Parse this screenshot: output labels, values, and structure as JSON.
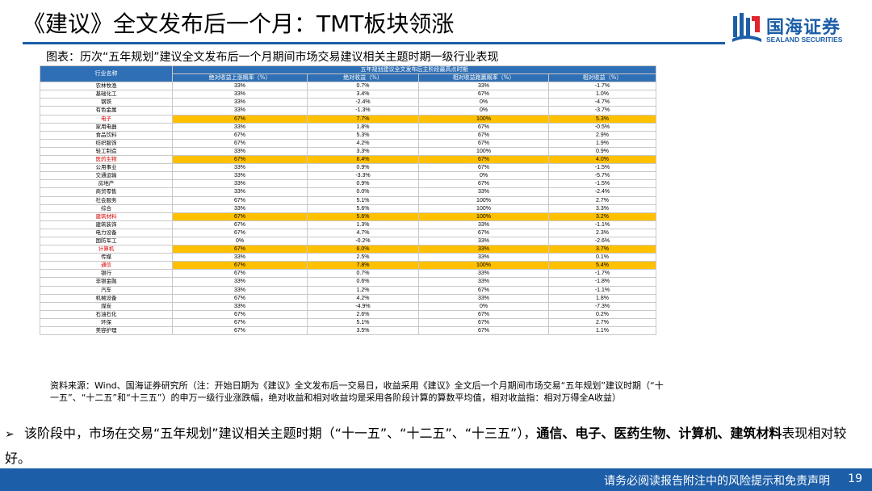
{
  "header": {
    "title": "《建议》全文发布后一个月：TMT板块领涨",
    "logo_cn": "国海证券",
    "logo_en": "SEALAND SECURITIES"
  },
  "caption": "图表：历次“五年规划”建议全文发布后一个月期间市场交易建议相关主题时期一级行业表现",
  "table": {
    "group_header": "五年规划建议全文发布后主阶段最高点时期",
    "industry_header": "行业名称",
    "columns": [
      "绝对收益上涨概率（%）",
      "绝对收益（%）",
      "相对收益跑赢概率（%）",
      "相对收益（%）"
    ],
    "rows": [
      {
        "name": "农林牧渔",
        "v": [
          "33%",
          "0.7%",
          "33%",
          "-1.7%"
        ],
        "hl": false
      },
      {
        "name": "基础化工",
        "v": [
          "33%",
          "3.4%",
          "67%",
          "1.0%"
        ],
        "hl": false
      },
      {
        "name": "钢铁",
        "v": [
          "33%",
          "-2.4%",
          "0%",
          "-4.7%"
        ],
        "hl": false
      },
      {
        "name": "有色金属",
        "v": [
          "33%",
          "-1.3%",
          "0%",
          "-3.7%"
        ],
        "hl": false
      },
      {
        "name": "电子",
        "v": [
          "67%",
          "7.7%",
          "100%",
          "5.3%"
        ],
        "hl": true
      },
      {
        "name": "家用电器",
        "v": [
          "33%",
          "1.8%",
          "67%",
          "-0.5%"
        ],
        "hl": false
      },
      {
        "name": "食品饮料",
        "v": [
          "67%",
          "5.3%",
          "67%",
          "2.9%"
        ],
        "hl": false
      },
      {
        "name": "纺织服饰",
        "v": [
          "67%",
          "4.2%",
          "67%",
          "1.9%"
        ],
        "hl": false
      },
      {
        "name": "轻工制造",
        "v": [
          "33%",
          "3.3%",
          "100%",
          "0.9%"
        ],
        "hl": false
      },
      {
        "name": "医药生物",
        "v": [
          "67%",
          "6.4%",
          "67%",
          "4.0%"
        ],
        "hl": true
      },
      {
        "name": "公用事业",
        "v": [
          "33%",
          "0.9%",
          "67%",
          "-1.5%"
        ],
        "hl": false
      },
      {
        "name": "交通运输",
        "v": [
          "33%",
          "-3.3%",
          "0%",
          "-5.7%"
        ],
        "hl": false
      },
      {
        "name": "房地产",
        "v": [
          "33%",
          "0.9%",
          "67%",
          "-1.5%"
        ],
        "hl": false
      },
      {
        "name": "商贸零售",
        "v": [
          "33%",
          "0.0%",
          "33%",
          "-2.4%"
        ],
        "hl": false
      },
      {
        "name": "社会服务",
        "v": [
          "67%",
          "5.1%",
          "100%",
          "2.7%"
        ],
        "hl": false
      },
      {
        "name": "综合",
        "v": [
          "33%",
          "5.6%",
          "100%",
          "3.3%"
        ],
        "hl": false
      },
      {
        "name": "建筑材料",
        "v": [
          "67%",
          "5.6%",
          "100%",
          "3.2%"
        ],
        "hl": true
      },
      {
        "name": "建筑装饰",
        "v": [
          "67%",
          "1.3%",
          "33%",
          "-1.1%"
        ],
        "hl": false
      },
      {
        "name": "电力设备",
        "v": [
          "67%",
          "4.7%",
          "67%",
          "2.3%"
        ],
        "hl": false
      },
      {
        "name": "国防军工",
        "v": [
          "0%",
          "-0.2%",
          "33%",
          "-2.6%"
        ],
        "hl": false
      },
      {
        "name": "计算机",
        "v": [
          "67%",
          "6.0%",
          "33%",
          "3.7%"
        ],
        "hl": true
      },
      {
        "name": "传媒",
        "v": [
          "33%",
          "2.5%",
          "33%",
          "0.1%"
        ],
        "hl": false
      },
      {
        "name": "通信",
        "v": [
          "67%",
          "7.8%",
          "100%",
          "5.4%"
        ],
        "hl": true
      },
      {
        "name": "银行",
        "v": [
          "67%",
          "0.7%",
          "33%",
          "-1.7%"
        ],
        "hl": false
      },
      {
        "name": "非银金融",
        "v": [
          "33%",
          "0.6%",
          "33%",
          "-1.8%"
        ],
        "hl": false
      },
      {
        "name": "汽车",
        "v": [
          "33%",
          "1.2%",
          "67%",
          "-1.1%"
        ],
        "hl": false
      },
      {
        "name": "机械设备",
        "v": [
          "67%",
          "4.2%",
          "33%",
          "1.8%"
        ],
        "hl": false
      },
      {
        "name": "煤炭",
        "v": [
          "33%",
          "-4.9%",
          "0%",
          "-7.3%"
        ],
        "hl": false
      },
      {
        "name": "石油石化",
        "v": [
          "67%",
          "2.6%",
          "67%",
          "0.2%"
        ],
        "hl": false
      },
      {
        "name": "环保",
        "v": [
          "67%",
          "5.1%",
          "67%",
          "2.7%"
        ],
        "hl": false
      },
      {
        "name": "美容护理",
        "v": [
          "67%",
          "3.5%",
          "67%",
          "1.1%"
        ],
        "hl": false
      }
    ]
  },
  "source": "资料来源：Wind、国海证券研究所（注：开始日期为《建议》全文发布后一交易日，收益采用《建议》全文后一个月期间市场交易“五年规划”建议时期（“十一五”、“十二五”和“十三五”）的申万一级行业涨跌幅，绝对收益和相对收益均是采用各阶段计算的算数平均值，相对收益指：相对万得全A收益）",
  "bullet": {
    "arrow": "➢",
    "text_before": "该阶段中，市场在交易“五年规划”建议相关主题时期（“十一五”、“十二五”、“十三五”），",
    "bold": "通信、电子、医药生物、计算机、建筑材料",
    "text_after": "表现相对较好。"
  },
  "footer": {
    "disclaimer": "请务必阅读报告附注中的风险提示和免责声明",
    "page": "19"
  },
  "colors": {
    "brand_blue": "#1c5ea8",
    "table_header": "#2f6fb5",
    "highlight": "#ffc000",
    "highlight_text": "#d40000"
  }
}
